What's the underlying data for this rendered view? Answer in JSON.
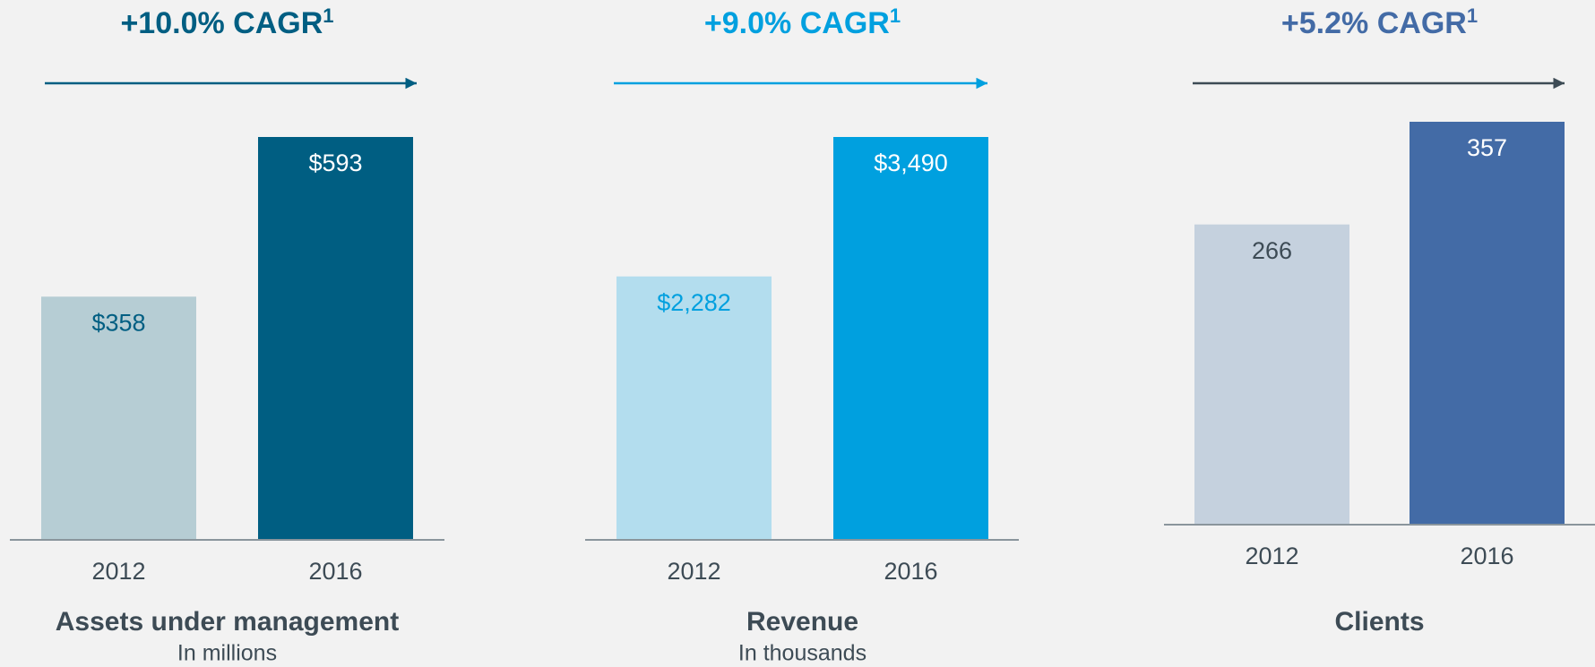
{
  "chart_data": [
    {
      "type": "bar",
      "title": "+10.0% CAGR",
      "title_sup": "1",
      "title_color": "#005e82",
      "categories": [
        "2012",
        "2016"
      ],
      "values": [
        358,
        593
      ],
      "value_labels": [
        "$358",
        "$593"
      ],
      "colors": [
        "#b6cdd4",
        "#005e82"
      ],
      "label_colors": [
        "#005e82",
        "#ffffff"
      ],
      "xlabel": "Assets under management",
      "note": "In millions"
    },
    {
      "type": "bar",
      "title": "+9.0% CAGR",
      "title_sup": "1",
      "title_color": "#00a0df",
      "categories": [
        "2012",
        "2016"
      ],
      "values": [
        2282,
        3490
      ],
      "value_labels": [
        "$2,282",
        "$3,490"
      ],
      "colors": [
        "#b3ddee",
        "#00a0df"
      ],
      "label_colors": [
        "#00a0df",
        "#ffffff"
      ],
      "xlabel": "Revenue",
      "note": "In thousands"
    },
    {
      "type": "bar",
      "title": "+5.2% CAGR",
      "title_sup": "1",
      "title_color": "#436ba6",
      "categories": [
        "2012",
        "2016"
      ],
      "values": [
        266,
        357
      ],
      "value_labels": [
        "266",
        "357"
      ],
      "colors": [
        "#c5d1de",
        "#436ba6"
      ],
      "label_colors": [
        "#3d4b55",
        "#ffffff"
      ],
      "xlabel": "Clients"
    }
  ]
}
